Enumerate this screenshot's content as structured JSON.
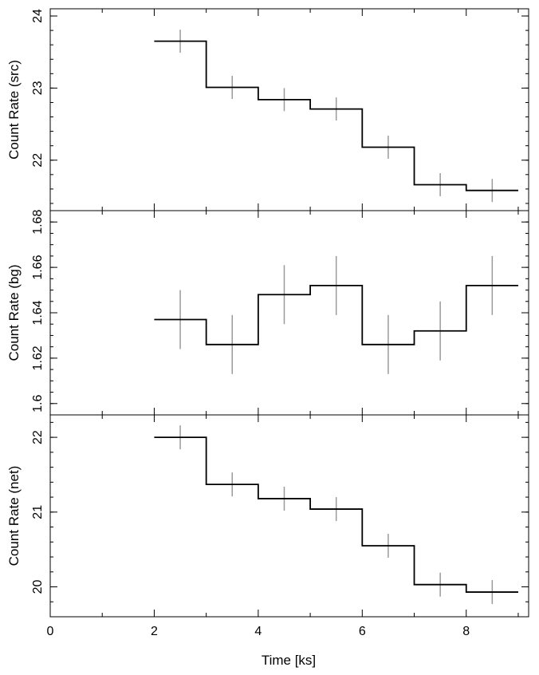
{
  "chart_data": {
    "type": "line",
    "shared_x": {
      "label": "Time [ks]",
      "range": [
        0,
        9.2
      ],
      "ticks": [
        0,
        2,
        4,
        6,
        8
      ],
      "tick_labels": [
        "0",
        "2",
        "4",
        "6",
        "8"
      ],
      "minor_step": 1
    },
    "panels": [
      {
        "ylabel": "Count Rate (src)",
        "ylim": [
          21.3,
          24.1
        ],
        "yticks": [
          22,
          23,
          24
        ],
        "ytick_labels": [
          "22",
          "23",
          "24"
        ],
        "minor_step": 0.2,
        "bin_edges": [
          2,
          3,
          4,
          5,
          6,
          7,
          8,
          9
        ],
        "bin_centers": [
          2.5,
          3.5,
          4.5,
          5.5,
          6.5,
          7.5,
          8.5
        ],
        "values": [
          23.65,
          23.01,
          22.84,
          22.71,
          22.18,
          21.66,
          21.58
        ],
        "errors": [
          0.16,
          0.16,
          0.16,
          0.16,
          0.16,
          0.16,
          0.16
        ]
      },
      {
        "ylabel": "Count Rate (bg)",
        "ylim": [
          1.595,
          1.685
        ],
        "yticks": [
          1.6,
          1.62,
          1.64,
          1.66,
          1.68
        ],
        "ytick_labels": [
          "1.6",
          "1.62",
          "1.64",
          "1.66",
          "1.68"
        ],
        "minor_step": 0.005,
        "bin_edges": [
          2,
          3,
          4,
          5,
          6,
          7,
          8,
          9
        ],
        "bin_centers": [
          2.5,
          3.5,
          4.5,
          5.5,
          6.5,
          7.5,
          8.5
        ],
        "values": [
          1.637,
          1.626,
          1.648,
          1.652,
          1.626,
          1.632,
          1.652
        ],
        "errors": [
          0.013,
          0.013,
          0.013,
          0.013,
          0.013,
          0.013,
          0.013
        ]
      },
      {
        "ylabel": "Count Rate (net)",
        "ylim": [
          19.6,
          22.3
        ],
        "yticks": [
          20,
          21,
          22
        ],
        "ytick_labels": [
          "20",
          "21",
          "22"
        ],
        "minor_step": 0.2,
        "bin_edges": [
          2,
          3,
          4,
          5,
          6,
          7,
          8,
          9
        ],
        "bin_centers": [
          2.5,
          3.5,
          4.5,
          5.5,
          6.5,
          7.5,
          8.5
        ],
        "values": [
          22.0,
          21.37,
          21.18,
          21.04,
          20.55,
          20.03,
          19.93
        ],
        "errors": [
          0.16,
          0.16,
          0.16,
          0.16,
          0.16,
          0.16,
          0.16
        ]
      }
    ],
    "colors": {
      "step": "#000000",
      "errorbar": "#9a9a9a",
      "axes": "#000000"
    }
  }
}
